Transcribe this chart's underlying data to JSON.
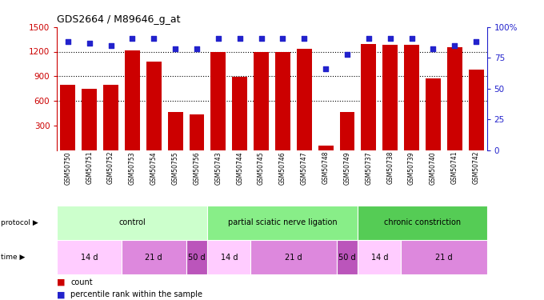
{
  "title": "GDS2664 / M89646_g_at",
  "samples": [
    "GSM50750",
    "GSM50751",
    "GSM50752",
    "GSM50753",
    "GSM50754",
    "GSM50755",
    "GSM50756",
    "GSM50743",
    "GSM50744",
    "GSM50745",
    "GSM50746",
    "GSM50747",
    "GSM50748",
    "GSM50749",
    "GSM50737",
    "GSM50738",
    "GSM50739",
    "GSM50740",
    "GSM50741",
    "GSM50742"
  ],
  "counts": [
    800,
    750,
    800,
    1210,
    1080,
    460,
    430,
    1195,
    890,
    1195,
    1195,
    1230,
    50,
    460,
    1290,
    1280,
    1280,
    870,
    1250,
    980
  ],
  "percentile_pct": [
    88,
    87,
    85,
    91,
    91,
    82,
    82,
    91,
    91,
    91,
    91,
    91,
    66,
    78,
    91,
    91,
    91,
    82,
    85,
    88
  ],
  "bar_color": "#cc0000",
  "dot_color": "#2222cc",
  "protocol_groups": [
    {
      "label": "control",
      "start": 0,
      "end": 7,
      "color": "#ccffcc"
    },
    {
      "label": "partial sciatic nerve ligation",
      "start": 7,
      "end": 14,
      "color": "#88ee88"
    },
    {
      "label": "chronic constriction",
      "start": 14,
      "end": 20,
      "color": "#55cc55"
    }
  ],
  "time_groups": [
    {
      "label": "14 d",
      "start": 0,
      "end": 3,
      "color": "#ffccff"
    },
    {
      "label": "21 d",
      "start": 3,
      "end": 6,
      "color": "#dd88dd"
    },
    {
      "label": "50 d",
      "start": 6,
      "end": 7,
      "color": "#bb55bb"
    },
    {
      "label": "14 d",
      "start": 7,
      "end": 9,
      "color": "#ffccff"
    },
    {
      "label": "21 d",
      "start": 9,
      "end": 13,
      "color": "#dd88dd"
    },
    {
      "label": "50 d",
      "start": 13,
      "end": 14,
      "color": "#bb55bb"
    },
    {
      "label": "14 d",
      "start": 14,
      "end": 16,
      "color": "#ffccff"
    },
    {
      "label": "21 d",
      "start": 16,
      "end": 20,
      "color": "#dd88dd"
    }
  ]
}
